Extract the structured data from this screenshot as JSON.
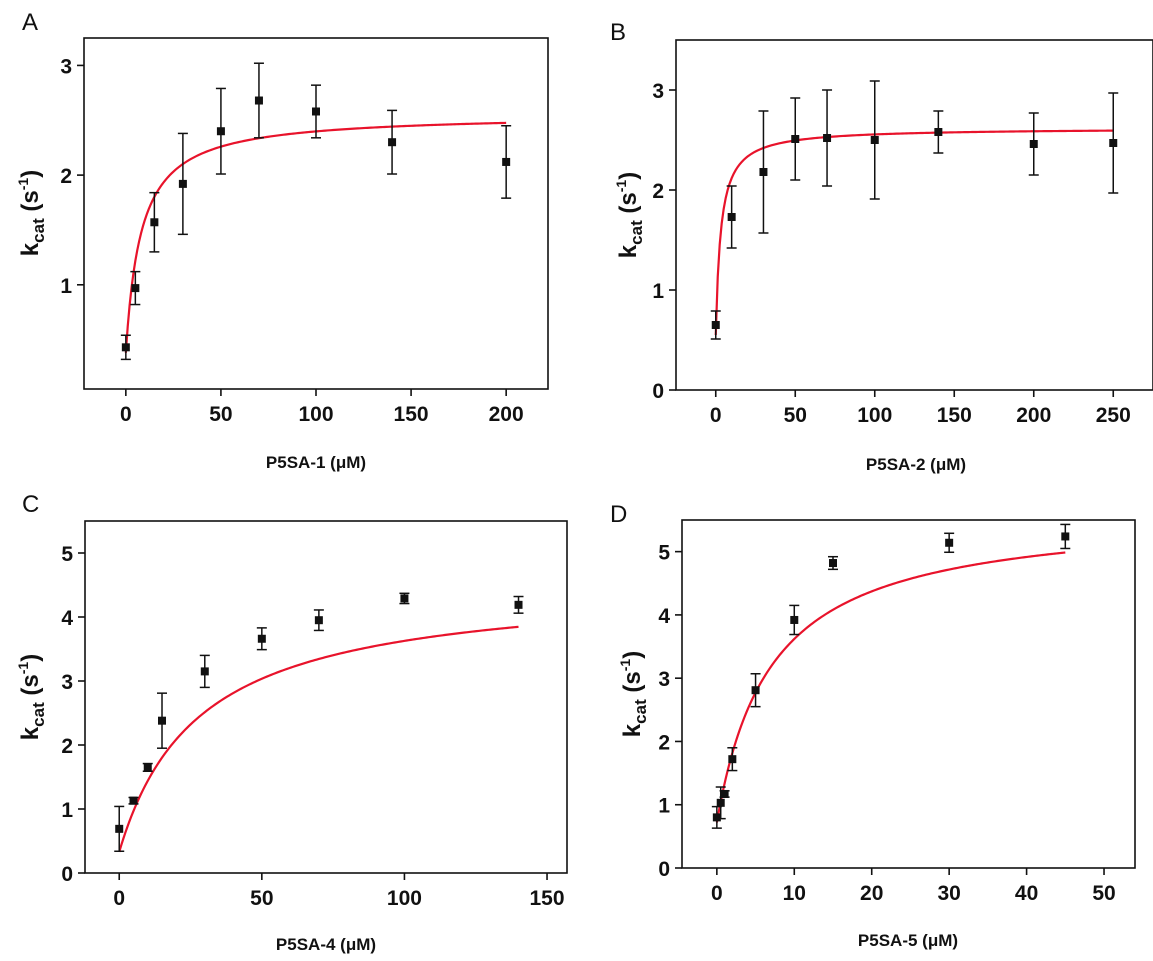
{
  "chart_data": [
    {
      "type": "scatter",
      "panel": "A",
      "xlabel": "P5SA-1 (μM)",
      "ylabel": {
        "base": "k",
        "sub": "cat",
        "unit_open": " (s",
        "sup": "-1",
        "unit_close": ")"
      },
      "xlim": [
        -22,
        222
      ],
      "ylim": [
        0.05,
        3.25
      ],
      "xticks": [
        0,
        50,
        100,
        150,
        200
      ],
      "yticks": [
        1,
        2,
        3
      ],
      "points": [
        {
          "x": 0,
          "y": 0.43,
          "err": 0.11
        },
        {
          "x": 5,
          "y": 0.97,
          "err": 0.15
        },
        {
          "x": 15,
          "y": 1.57,
          "err": 0.27
        },
        {
          "x": 30,
          "y": 1.92,
          "err": 0.46
        },
        {
          "x": 50,
          "y": 2.4,
          "err": 0.39
        },
        {
          "x": 70,
          "y": 2.68,
          "err": 0.34
        },
        {
          "x": 100,
          "y": 2.58,
          "err": 0.24
        },
        {
          "x": 140,
          "y": 2.3,
          "err": 0.29
        },
        {
          "x": 200,
          "y": 2.12,
          "err": 0.33
        }
      ],
      "fit": {
        "vmax": 2.56,
        "km": 8.0,
        "y0": 0.38,
        "x_range": [
          0,
          200
        ]
      }
    },
    {
      "type": "scatter",
      "panel": "B",
      "xlabel": "P5SA-2 (μM)",
      "ylabel": {
        "base": "k",
        "sub": "cat",
        "unit_open": " (s",
        "sup": "-1",
        "unit_close": ")"
      },
      "xlim": [
        -25,
        275
      ],
      "ylim": [
        0,
        3.5
      ],
      "xticks": [
        0,
        50,
        100,
        150,
        200,
        250
      ],
      "yticks": [
        0,
        1,
        2,
        3
      ],
      "points": [
        {
          "x": 0,
          "y": 0.65,
          "err": 0.14
        },
        {
          "x": 10,
          "y": 1.73,
          "err": 0.31
        },
        {
          "x": 30,
          "y": 2.18,
          "err": 0.61
        },
        {
          "x": 50,
          "y": 2.51,
          "err": 0.41
        },
        {
          "x": 70,
          "y": 2.52,
          "err": 0.48
        },
        {
          "x": 100,
          "y": 2.5,
          "err": 0.59
        },
        {
          "x": 140,
          "y": 2.58,
          "err": 0.21
        },
        {
          "x": 200,
          "y": 2.46,
          "err": 0.31
        },
        {
          "x": 250,
          "y": 2.47,
          "err": 0.5
        }
      ],
      "fit": {
        "vmax": 2.62,
        "km": 3.2,
        "y0": 0.55,
        "x_range": [
          0,
          250
        ]
      }
    },
    {
      "type": "scatter",
      "panel": "C",
      "xlabel": "P5SA-4 (μM)",
      "ylabel": {
        "base": "k",
        "sub": "cat",
        "unit_open": " (s",
        "sup": "-1",
        "unit_close": ")"
      },
      "xlim": [
        -12,
        157
      ],
      "ylim": [
        0,
        5.5
      ],
      "xticks": [
        0,
        50,
        100,
        150
      ],
      "yticks": [
        0,
        1,
        2,
        3,
        4,
        5
      ],
      "points": [
        {
          "x": 0,
          "y": 0.69,
          "err": 0.35
        },
        {
          "x": 5,
          "y": 1.13,
          "err": 0.05
        },
        {
          "x": 10,
          "y": 1.65,
          "err": 0.06
        },
        {
          "x": 15,
          "y": 2.38,
          "err": 0.43
        },
        {
          "x": 30,
          "y": 3.15,
          "err": 0.25
        },
        {
          "x": 50,
          "y": 3.66,
          "err": 0.17
        },
        {
          "x": 70,
          "y": 3.95,
          "err": 0.16
        },
        {
          "x": 100,
          "y": 4.29,
          "err": 0.08
        },
        {
          "x": 140,
          "y": 4.19,
          "err": 0.13
        }
      ],
      "fit": {
        "vmax": 4.55,
        "km": 28.0,
        "y0": 0.33,
        "x_range": [
          0,
          140
        ]
      }
    },
    {
      "type": "scatter",
      "panel": "D",
      "xlabel": "P5SA-5 (μM)",
      "ylabel": {
        "base": "k",
        "sub": "cat",
        "unit_open": " (s",
        "sup": "-1",
        "unit_close": ")"
      },
      "xlim": [
        -4.5,
        54
      ],
      "ylim": [
        0,
        5.5
      ],
      "xticks": [
        0,
        10,
        20,
        30,
        40,
        50
      ],
      "yticks": [
        0,
        1,
        2,
        3,
        4,
        5
      ],
      "points": [
        {
          "x": 0,
          "y": 0.8,
          "err": 0.17
        },
        {
          "x": 0.5,
          "y": 1.03,
          "err": 0.25
        },
        {
          "x": 1,
          "y": 1.17,
          "err": 0.05
        },
        {
          "x": 2,
          "y": 1.72,
          "err": 0.18
        },
        {
          "x": 5,
          "y": 2.81,
          "err": 0.26
        },
        {
          "x": 10,
          "y": 3.92,
          "err": 0.23
        },
        {
          "x": 15,
          "y": 4.82,
          "err": 0.1
        },
        {
          "x": 30,
          "y": 5.14,
          "err": 0.15
        },
        {
          "x": 45,
          "y": 5.24,
          "err": 0.19
        }
      ],
      "fit": {
        "vmax": 5.65,
        "km": 7.0,
        "y0": 0.72,
        "x_range": [
          0,
          45
        ]
      }
    }
  ],
  "colors": {
    "fit_line": "#e8132b",
    "points": "#111111",
    "axes": "#111111"
  }
}
